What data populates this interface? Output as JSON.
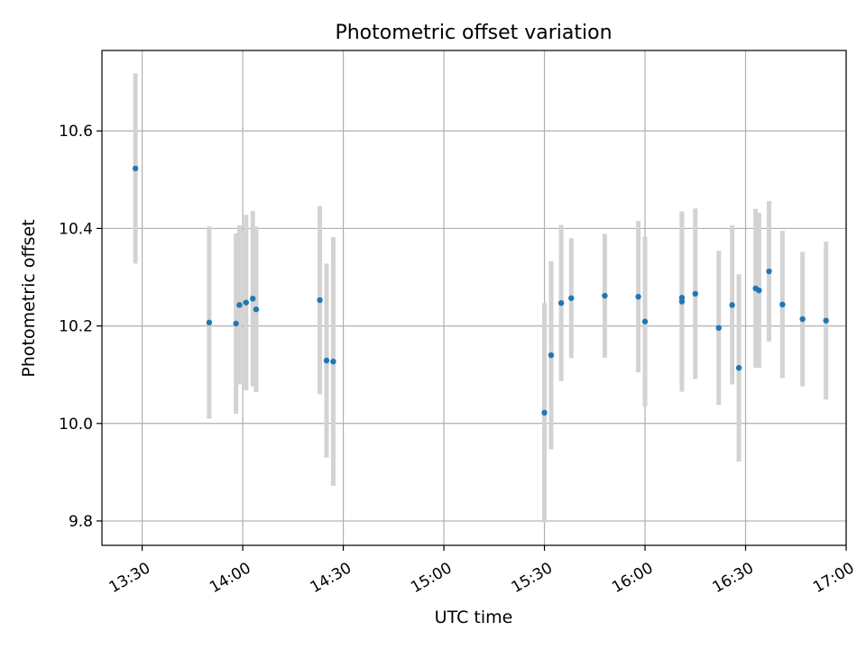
{
  "chart_data": {
    "type": "scatter",
    "title": "Photometric offset variation",
    "xlabel": "UTC time",
    "ylabel": "Photometric offset",
    "x_unit": "UTC time (hh:mm)",
    "xlim": [
      "13:18",
      "17:00"
    ],
    "ylim": [
      9.75,
      10.765
    ],
    "grid": true,
    "point_color": "#1f77b4",
    "errorbar_color": "#d3d3d3",
    "x_ticks": [
      "13:30",
      "14:00",
      "14:30",
      "15:00",
      "15:30",
      "16:00",
      "16:30",
      "17:00"
    ],
    "y_ticks": [
      "9.8",
      "10.0",
      "10.2",
      "10.4",
      "10.6"
    ],
    "points": [
      {
        "x": "13:28",
        "y": 10.523,
        "yerr": 0.195
      },
      {
        "x": "13:50",
        "y": 10.207,
        "yerr": 0.197
      },
      {
        "x": "13:58",
        "y": 10.205,
        "yerr": 0.185
      },
      {
        "x": "13:59",
        "y": 10.243,
        "yerr": 0.163
      },
      {
        "x": "14:01",
        "y": 10.248,
        "yerr": 0.18
      },
      {
        "x": "14:03",
        "y": 10.256,
        "yerr": 0.18
      },
      {
        "x": "14:04",
        "y": 10.234,
        "yerr": 0.17
      },
      {
        "x": "14:23",
        "y": 10.253,
        "yerr": 0.193
      },
      {
        "x": "14:25",
        "y": 10.129,
        "yerr": 0.199
      },
      {
        "x": "14:27",
        "y": 10.127,
        "yerr": 0.255
      },
      {
        "x": "15:30",
        "y": 10.022,
        "yerr": 0.225
      },
      {
        "x": "15:32",
        "y": 10.14,
        "yerr": 0.193
      },
      {
        "x": "15:35",
        "y": 10.247,
        "yerr": 0.16
      },
      {
        "x": "15:38",
        "y": 10.257,
        "yerr": 0.123
      },
      {
        "x": "15:48",
        "y": 10.262,
        "yerr": 0.127
      },
      {
        "x": "15:58",
        "y": 10.26,
        "yerr": 0.155
      },
      {
        "x": "16:00",
        "y": 10.209,
        "yerr": 0.174
      },
      {
        "x": "16:11",
        "y": 10.258,
        "yerr": 0.175
      },
      {
        "x": "16:11",
        "y": 10.25,
        "yerr": 0.185
      },
      {
        "x": "16:15",
        "y": 10.266,
        "yerr": 0.175
      },
      {
        "x": "16:22",
        "y": 10.196,
        "yerr": 0.158
      },
      {
        "x": "16:26",
        "y": 10.243,
        "yerr": 0.163
      },
      {
        "x": "16:28",
        "y": 10.114,
        "yerr": 0.192
      },
      {
        "x": "16:33",
        "y": 10.277,
        "yerr": 0.163
      },
      {
        "x": "16:34",
        "y": 10.273,
        "yerr": 0.159
      },
      {
        "x": "16:37",
        "y": 10.312,
        "yerr": 0.144
      },
      {
        "x": "16:41",
        "y": 10.244,
        "yerr": 0.151
      },
      {
        "x": "16:47",
        "y": 10.214,
        "yerr": 0.138
      },
      {
        "x": "16:54",
        "y": 10.211,
        "yerr": 0.162
      }
    ]
  }
}
